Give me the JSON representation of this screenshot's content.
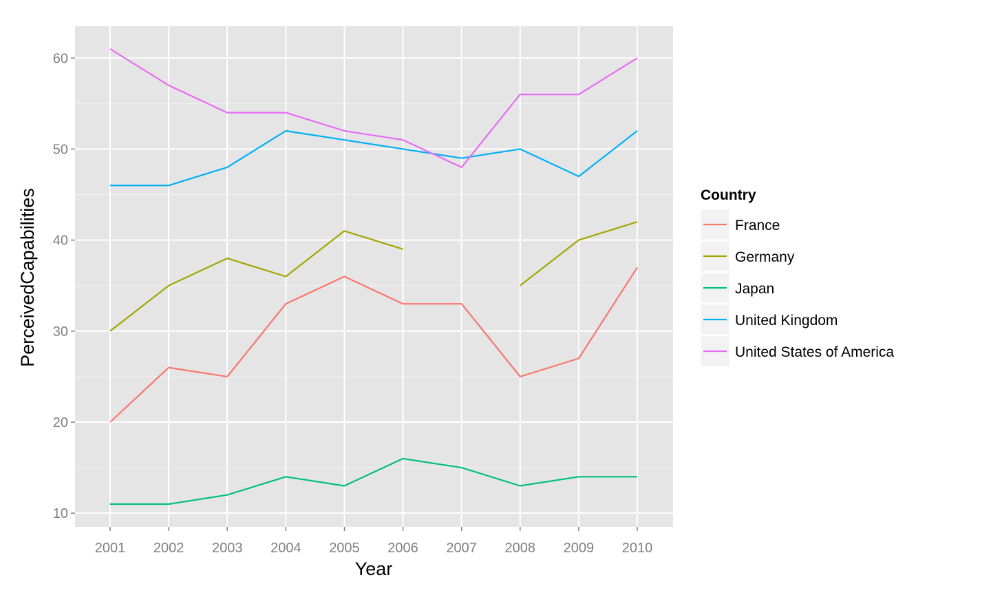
{
  "chart_data": {
    "type": "line",
    "title": "",
    "xlabel": "Year",
    "ylabel": "PerceivedCapabilities",
    "x": [
      2001,
      2002,
      2003,
      2004,
      2005,
      2006,
      2007,
      2008,
      2009,
      2010
    ],
    "x_ticks": [
      "2001",
      "2002",
      "2003",
      "2004",
      "2005",
      "2006",
      "2007",
      "2008",
      "2009",
      "2010"
    ],
    "y_ticks": [
      "10",
      "20",
      "30",
      "40",
      "50",
      "60"
    ],
    "ylim": [
      8.5,
      63.5
    ],
    "grid": true,
    "legend": {
      "title": "Country",
      "placement": "right"
    },
    "series": [
      {
        "name": "France",
        "color": "#F8766D",
        "values": [
          20,
          26,
          25,
          33,
          36,
          33,
          33,
          25,
          27,
          37
        ]
      },
      {
        "name": "Germany",
        "color": "#A3A500",
        "values": [
          30,
          35,
          38,
          36,
          41,
          39,
          null,
          35,
          40,
          42
        ]
      },
      {
        "name": "Japan",
        "color": "#00BF7D",
        "values": [
          11,
          11,
          12,
          14,
          13,
          16,
          15,
          13,
          14,
          14
        ]
      },
      {
        "name": "United Kingdom",
        "color": "#00B0F6",
        "values": [
          46,
          46,
          48,
          52,
          51,
          50,
          49,
          50,
          47,
          52
        ]
      },
      {
        "name": "United States of America",
        "color": "#E76BF3",
        "values": [
          61,
          57,
          54,
          54,
          52,
          51,
          48,
          56,
          56,
          60
        ]
      }
    ]
  },
  "colors": {
    "panel_bg": "#E5E5E5",
    "grid_major": "#FFFFFF",
    "grid_minor": "#F2F2F2",
    "legend_key_bg": "#F2F2F2"
  }
}
